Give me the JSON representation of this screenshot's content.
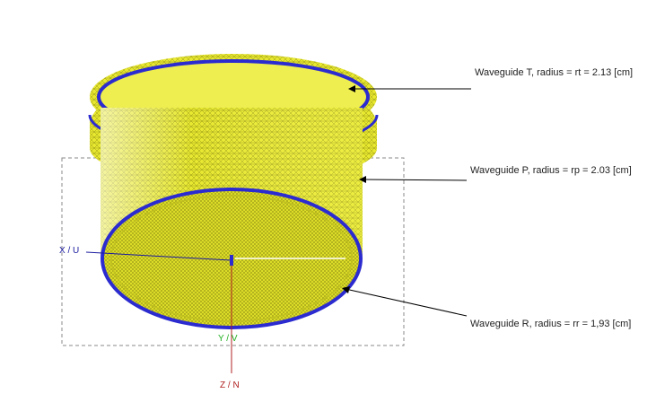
{
  "labels": {
    "waveguide_t": "Waveguide T, radius = rt = 2.13 [cm]",
    "waveguide_p": "Waveguide P, radius = rp = 2.03 [cm]",
    "waveguide_r": "Waveguide R, radius = rr = 1,93 [cm]"
  },
  "axes": {
    "x": "X / U",
    "y": "Y / V",
    "z": "Z / N"
  },
  "colors": {
    "body_fill": "#e6e62a",
    "body_shade": "#c9c91e",
    "mesh_lines": "#8a8a10",
    "rim": "#2b2bd0",
    "leader": "#000000",
    "x_axis": "#1a1aa0",
    "y_axis": "#20b020",
    "z_axis": "#b02020",
    "bbox": "#888888"
  }
}
